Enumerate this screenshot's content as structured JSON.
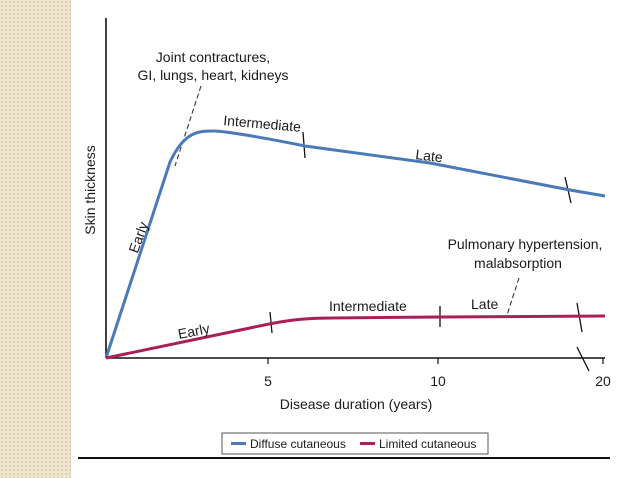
{
  "chart_data": {
    "type": "line",
    "title": "",
    "xlabel": "Disease duration (years)",
    "ylabel": "Skin thickness",
    "x_ticks": [
      "5",
      "10",
      "20"
    ],
    "x_tick_values": [
      5,
      10,
      20
    ],
    "series": [
      {
        "name": "Diffuse cutaneous",
        "color": "#4a7ab8",
        "points": [
          [
            0,
            0
          ],
          [
            1,
            0.4
          ],
          [
            2,
            0.72
          ],
          [
            3,
            0.92
          ],
          [
            3.5,
            0.96
          ],
          [
            4,
            0.96
          ],
          [
            6,
            0.92
          ],
          [
            9,
            0.84
          ],
          [
            12,
            0.76
          ],
          [
            14,
            0.71
          ],
          [
            15.4,
            0.68
          ]
        ]
      },
      {
        "name": "Limited cutaneous",
        "color": "#a8205a",
        "points": [
          [
            0,
            0
          ],
          [
            5,
            0.13
          ],
          [
            6,
            0.16
          ],
          [
            7,
            0.165
          ],
          [
            10,
            0.17
          ],
          [
            13,
            0.175
          ],
          [
            15.4,
            0.18
          ]
        ]
      }
    ],
    "stage_labels": {
      "diffuse": [
        "Early",
        "Intermediate",
        "Late"
      ],
      "limited": [
        "Early",
        "Intermediate",
        "Late"
      ]
    },
    "annotations": [
      "Joint contractures,",
      "GI, lungs, heart, kidneys",
      "Pulmonary hypertension,",
      "malabsorption"
    ],
    "legend": [
      "Diffuse cutaneous",
      "Limited cutaneous"
    ],
    "legend_position": "bottom",
    "grid": false
  }
}
